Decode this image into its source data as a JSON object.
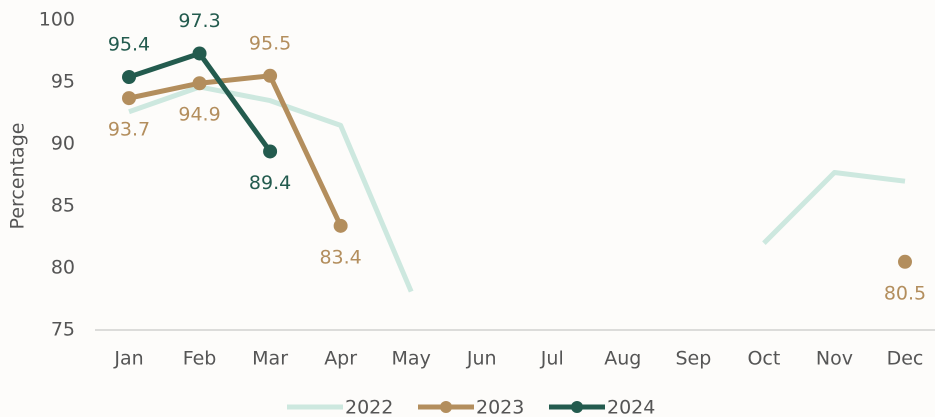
{
  "chart_data": {
    "type": "line",
    "y_label": "Percentage",
    "categories": [
      "Jan",
      "Feb",
      "Mar",
      "Apr",
      "May",
      "Jun",
      "Jul",
      "Aug",
      "Sep",
      "Oct",
      "Nov",
      "Dec"
    ],
    "series": [
      {
        "name": "2022",
        "color": "#cde8df",
        "markers": false,
        "data_labels": false,
        "values": [
          92.6,
          94.6,
          93.5,
          91.5,
          78.1,
          null,
          null,
          null,
          null,
          82.0,
          87.7,
          87.0
        ]
      },
      {
        "name": "2023",
        "color": "#b38e5d",
        "markers": true,
        "data_labels": true,
        "values": [
          93.7,
          94.9,
          95.5,
          83.4,
          null,
          null,
          null,
          null,
          null,
          null,
          null,
          80.5
        ]
      },
      {
        "name": "2024",
        "color": "#235b4e",
        "markers": true,
        "data_labels": true,
        "values": [
          95.4,
          97.3,
          89.4,
          null,
          null,
          null,
          null,
          null,
          null,
          null,
          null,
          null
        ]
      }
    ],
    "ylim": [
      75,
      100
    ],
    "yticks": [
      75,
      80,
      85,
      90,
      95,
      100
    ],
    "grid": false,
    "legend": "bottom"
  }
}
